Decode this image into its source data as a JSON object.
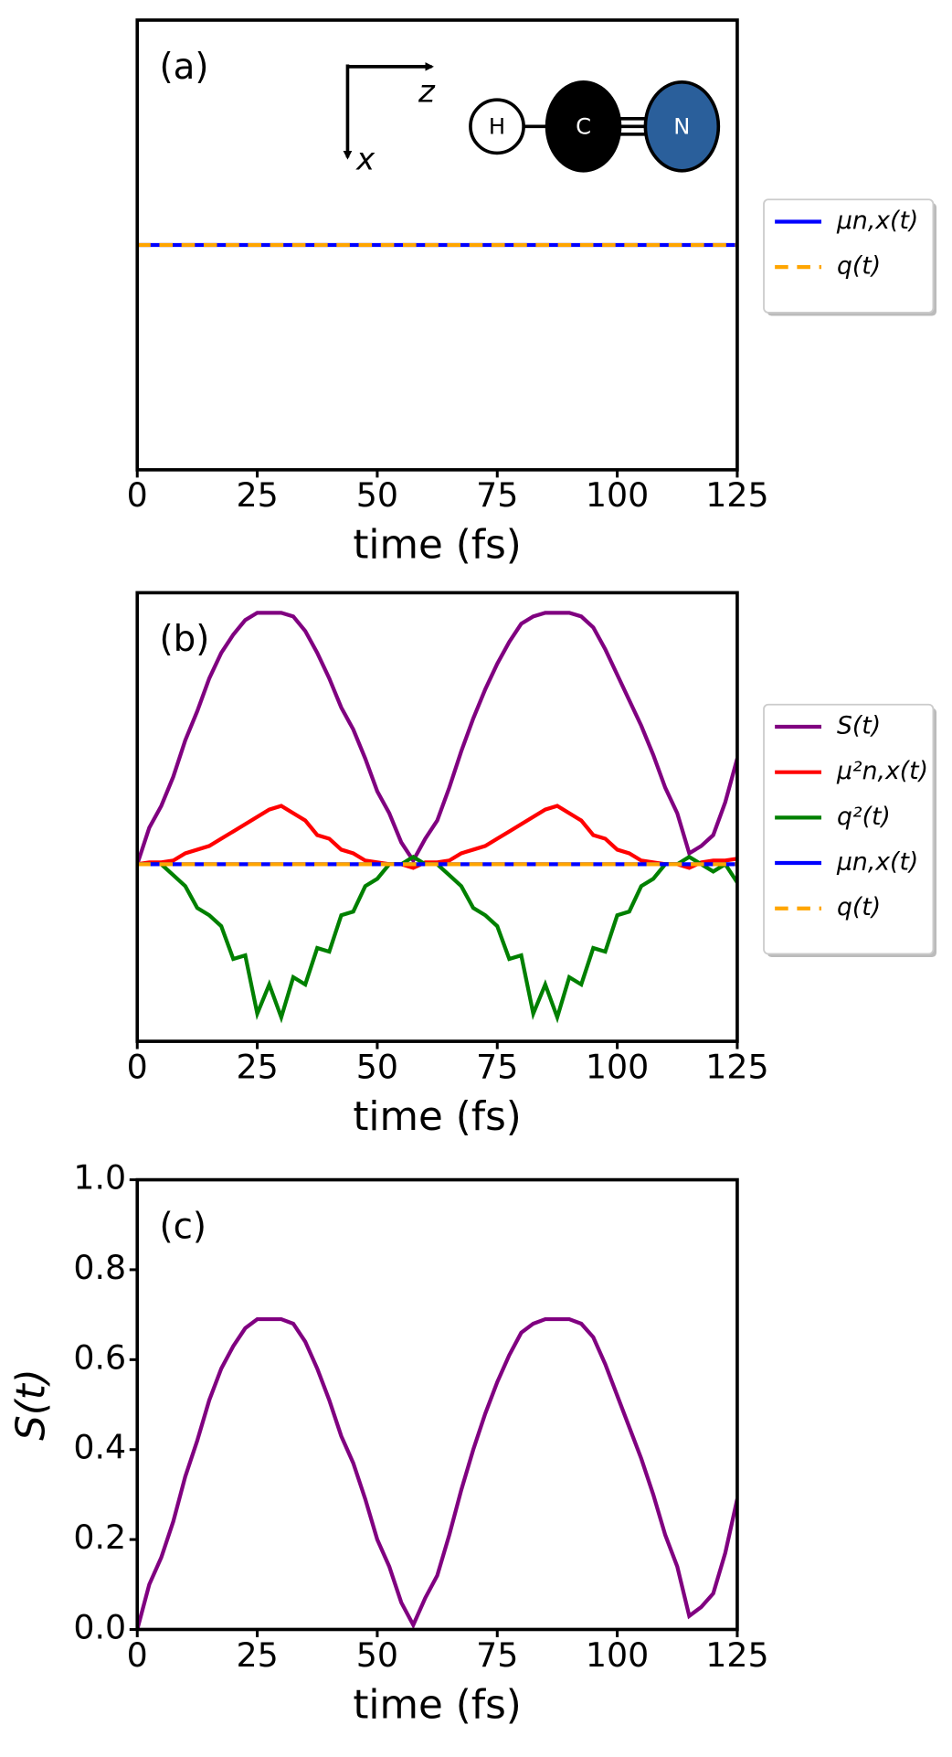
{
  "chart_data": [
    {
      "type": "line",
      "annotation": "(a)",
      "xlabel": "time (fs)",
      "legend": "right",
      "inset": {
        "axes": [
          "z",
          "x"
        ],
        "atoms": [
          "H",
          "C",
          "N"
        ]
      },
      "x": [
        0,
        125
      ],
      "series": [
        {
          "name": "μn,x(t)",
          "color": "#0000ff",
          "linestyle": "solid",
          "values": [
            0,
            0
          ]
        },
        {
          "name": "q(t)",
          "color": "#ffa500",
          "linestyle": "dashed",
          "values": [
            0,
            0
          ]
        }
      ],
      "xlim": [
        0,
        125
      ],
      "xticks": [
        0,
        25,
        50,
        75,
        100,
        125
      ],
      "ylim": [
        -1,
        1
      ]
    },
    {
      "type": "line",
      "annotation": "(b)",
      "xlabel": "time (fs)",
      "legend": "right",
      "x": [
        0,
        2.5,
        5,
        7.5,
        10,
        12.5,
        15,
        17.5,
        20,
        22.5,
        25,
        27.5,
        30,
        32.5,
        35,
        37.5,
        40,
        42.5,
        45,
        47.5,
        50,
        52.5,
        55,
        57.5,
        60,
        62.5,
        65,
        67.5,
        70,
        72.5,
        75,
        77.5,
        80,
        82.5,
        85,
        87.5,
        90,
        92.5,
        95,
        97.5,
        100,
        102.5,
        105,
        107.5,
        110,
        112.5,
        115,
        117.5,
        120,
        122.5,
        125
      ],
      "series": [
        {
          "name": "S(t)",
          "color": "#800080",
          "linestyle": "solid",
          "values": [
            0,
            0.1,
            0.16,
            0.24,
            0.34,
            0.42,
            0.51,
            0.58,
            0.63,
            0.67,
            0.69,
            0.69,
            0.69,
            0.68,
            0.64,
            0.58,
            0.51,
            0.43,
            0.37,
            0.29,
            0.2,
            0.14,
            0.06,
            0.01,
            0.07,
            0.12,
            0.21,
            0.31,
            0.4,
            0.48,
            0.55,
            0.61,
            0.66,
            0.68,
            0.69,
            0.69,
            0.69,
            0.68,
            0.65,
            0.59,
            0.52,
            0.45,
            0.38,
            0.3,
            0.21,
            0.14,
            0.03,
            0.05,
            0.08,
            0.17,
            0.29
          ]
        },
        {
          "name": "μ²n,x(t)",
          "color": "#ff0000",
          "linestyle": "solid",
          "values": [
            0,
            0.005,
            0.005,
            0.01,
            0.03,
            0.04,
            0.05,
            0.07,
            0.09,
            0.11,
            0.13,
            0.15,
            0.16,
            0.14,
            0.12,
            0.08,
            0.07,
            0.04,
            0.03,
            0.01,
            0.005,
            0,
            0,
            -0.01,
            0.005,
            0.005,
            0.01,
            0.03,
            0.04,
            0.05,
            0.07,
            0.09,
            0.11,
            0.13,
            0.15,
            0.16,
            0.14,
            0.12,
            0.08,
            0.07,
            0.04,
            0.03,
            0.01,
            0.005,
            0,
            0,
            -0.01,
            0.005,
            0.01,
            0.01,
            0.015
          ]
        },
        {
          "name": "q²(t)",
          "color": "#008000",
          "linestyle": "solid",
          "values": [
            0,
            0,
            0,
            -0.03,
            -0.06,
            -0.12,
            -0.14,
            -0.17,
            -0.26,
            -0.25,
            -0.41,
            -0.33,
            -0.42,
            -0.31,
            -0.33,
            -0.23,
            -0.24,
            -0.14,
            -0.13,
            -0.06,
            -0.04,
            0,
            0,
            0.02,
            0,
            0,
            -0.03,
            -0.06,
            -0.12,
            -0.14,
            -0.17,
            -0.26,
            -0.25,
            -0.41,
            -0.33,
            -0.42,
            -0.31,
            -0.33,
            -0.23,
            -0.24,
            -0.14,
            -0.13,
            -0.06,
            -0.04,
            0,
            0,
            0.02,
            0,
            -0.02,
            0,
            -0.05
          ]
        },
        {
          "name": "μn,x(t)",
          "color": "#0000ff",
          "linestyle": "solid",
          "values": [
            0,
            0,
            0,
            0,
            0,
            0,
            0,
            0,
            0,
            0,
            0,
            0,
            0,
            0,
            0,
            0,
            0,
            0,
            0,
            0,
            0,
            0,
            0,
            0,
            0,
            0,
            0,
            0,
            0,
            0,
            0,
            0,
            0,
            0,
            0,
            0,
            0,
            0,
            0,
            0,
            0,
            0,
            0,
            0,
            0,
            0,
            0,
            0,
            0,
            0,
            0
          ]
        },
        {
          "name": "q(t)",
          "color": "#ffa500",
          "linestyle": "dashed",
          "values": [
            0,
            0,
            0,
            0,
            0,
            0,
            0,
            0,
            0,
            0,
            0,
            0,
            0,
            0,
            0,
            0,
            0,
            0,
            0,
            0,
            0,
            0,
            0,
            0,
            0,
            0,
            0,
            0,
            0,
            0,
            0,
            0,
            0,
            0,
            0,
            0,
            0,
            0,
            0,
            0,
            0,
            0,
            0,
            0,
            0,
            0,
            0,
            0,
            0,
            0,
            0
          ]
        }
      ],
      "xlim": [
        0,
        125
      ],
      "xticks": [
        0,
        25,
        50,
        75,
        100,
        125
      ],
      "ylim": [
        -0.486,
        0.745
      ]
    },
    {
      "type": "line",
      "annotation": "(c)",
      "xlabel": "time (fs)",
      "ylabel": "S(t)",
      "x": [
        0,
        2.5,
        5,
        7.5,
        10,
        12.5,
        15,
        17.5,
        20,
        22.5,
        25,
        27.5,
        30,
        32.5,
        35,
        37.5,
        40,
        42.5,
        45,
        47.5,
        50,
        52.5,
        55,
        57.5,
        60,
        62.5,
        65,
        67.5,
        70,
        72.5,
        75,
        77.5,
        80,
        82.5,
        85,
        87.5,
        90,
        92.5,
        95,
        97.5,
        100,
        102.5,
        105,
        107.5,
        110,
        112.5,
        115,
        117.5,
        120,
        122.5,
        125
      ],
      "series": [
        {
          "color": "#800080",
          "linestyle": "solid",
          "values": [
            0,
            0.1,
            0.16,
            0.24,
            0.34,
            0.42,
            0.51,
            0.58,
            0.63,
            0.67,
            0.69,
            0.69,
            0.69,
            0.68,
            0.64,
            0.58,
            0.51,
            0.43,
            0.37,
            0.29,
            0.2,
            0.14,
            0.06,
            0.01,
            0.07,
            0.12,
            0.21,
            0.31,
            0.4,
            0.48,
            0.55,
            0.61,
            0.66,
            0.68,
            0.69,
            0.69,
            0.69,
            0.68,
            0.65,
            0.59,
            0.52,
            0.45,
            0.38,
            0.3,
            0.21,
            0.14,
            0.03,
            0.05,
            0.08,
            0.17,
            0.29
          ]
        }
      ],
      "xlim": [
        0,
        125
      ],
      "xticks": [
        0,
        25,
        50,
        75,
        100,
        125
      ],
      "ylim": [
        0,
        1
      ],
      "yticks": [
        {
          "value": 0,
          "label": "0.0"
        },
        0.2,
        0.4,
        0.6,
        0.8,
        {
          "value": 1,
          "label": "1.0"
        }
      ]
    }
  ]
}
